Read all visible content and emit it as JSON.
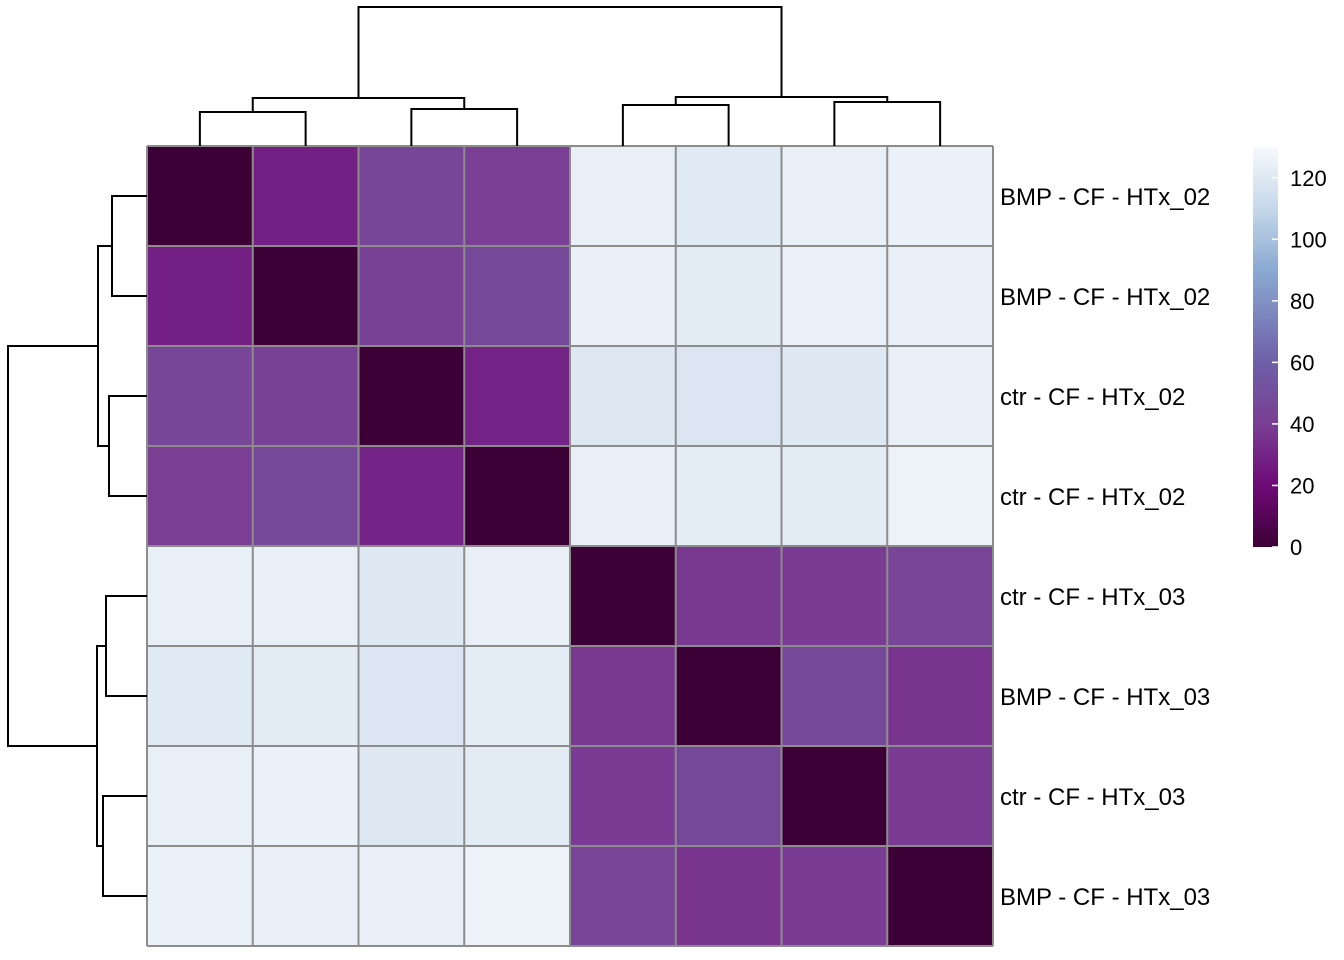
{
  "chart_data": {
    "type": "heatmap",
    "title": "",
    "row_labels": [
      "BMP - CF - HTx_02",
      "BMP - CF - HTx_02",
      "ctr - CF - HTx_02",
      "ctr - CF - HTx_02",
      "ctr - CF - HTx_03",
      "BMP - CF - HTx_03",
      "ctr - CF - HTx_03",
      "BMP - CF - HTx_03"
    ],
    "matrix": [
      [
        0,
        28,
        45,
        40,
        124,
        121,
        124,
        125
      ],
      [
        28,
        0,
        42,
        46,
        124,
        122,
        125,
        124
      ],
      [
        45,
        42,
        0,
        30,
        120,
        119,
        120,
        124
      ],
      [
        40,
        46,
        30,
        0,
        124,
        123,
        122,
        126
      ],
      [
        124,
        124,
        120,
        124,
        0,
        38,
        39,
        44
      ],
      [
        121,
        122,
        119,
        123,
        38,
        0,
        46,
        36
      ],
      [
        124,
        125,
        120,
        122,
        39,
        46,
        0,
        39
      ],
      [
        125,
        124,
        124,
        126,
        44,
        36,
        39,
        0
      ]
    ],
    "colorbar": {
      "range": [
        0,
        130
      ],
      "ticks": [
        0,
        20,
        40,
        60,
        80,
        100,
        120
      ],
      "color_stops": [
        "#3d0036",
        "#6e0a77",
        "#7a3e94",
        "#6e5fa8",
        "#8aaad2",
        "#c6d7ea",
        "#f6f9fc"
      ]
    },
    "cluster": {
      "columns": "((1,2),(3,4)),((5,6),(7,8))",
      "rows": "((1,2),(3,4)),((5,6),(7,8))"
    },
    "grid_color": "#8c8c8c",
    "line_color": "#000000"
  }
}
